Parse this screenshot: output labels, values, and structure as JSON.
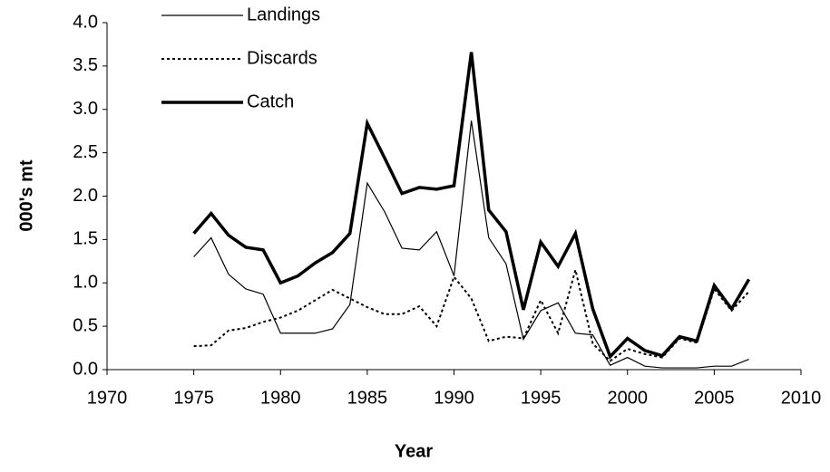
{
  "chart_data": {
    "type": "line",
    "x_label": "Year",
    "y_label": "000's mt",
    "x": [
      1975,
      1976,
      1977,
      1978,
      1979,
      1980,
      1981,
      1982,
      1983,
      1984,
      1985,
      1986,
      1987,
      1988,
      1989,
      1990,
      1991,
      1992,
      1993,
      1994,
      1995,
      1996,
      1997,
      1998,
      1999,
      2000,
      2001,
      2002,
      2003,
      2004,
      2005,
      2006,
      2007
    ],
    "series": [
      {
        "name": "Landings",
        "color": "#000000",
        "width": 1.2,
        "dash": "none",
        "values": [
          1.3,
          1.52,
          1.1,
          0.93,
          0.87,
          0.42,
          0.42,
          0.42,
          0.47,
          0.75,
          2.15,
          1.82,
          1.4,
          1.38,
          1.59,
          1.08,
          2.87,
          1.52,
          1.22,
          0.35,
          0.68,
          0.77,
          0.42,
          0.4,
          0.05,
          0.14,
          0.04,
          0.02,
          0.02,
          0.02,
          0.04,
          0.04,
          0.12
        ]
      },
      {
        "name": "Discards",
        "color": "#000000",
        "width": 2,
        "dash": "3 3",
        "values": [
          0.27,
          0.28,
          0.45,
          0.48,
          0.55,
          0.6,
          0.68,
          0.8,
          0.92,
          0.82,
          0.72,
          0.64,
          0.64,
          0.73,
          0.5,
          1.07,
          0.82,
          0.33,
          0.38,
          0.36,
          0.8,
          0.42,
          1.15,
          0.3,
          0.1,
          0.24,
          0.18,
          0.14,
          0.36,
          0.31,
          0.93,
          0.68,
          0.9
        ]
      },
      {
        "name": "Catch",
        "color": "#000000",
        "width": 3.5,
        "dash": "none",
        "values": [
          1.57,
          1.8,
          1.55,
          1.41,
          1.38,
          1.0,
          1.08,
          1.23,
          1.35,
          1.57,
          2.84,
          2.44,
          2.03,
          2.1,
          2.08,
          2.12,
          3.66,
          1.84,
          1.59,
          0.69,
          1.47,
          1.19,
          1.57,
          0.7,
          0.15,
          0.36,
          0.22,
          0.16,
          0.38,
          0.33,
          0.97,
          0.7,
          1.04
        ]
      }
    ],
    "xlim": [
      1970,
      2010
    ],
    "xticks": [
      1970,
      1975,
      1980,
      1985,
      1990,
      1995,
      2000,
      2005,
      2010
    ],
    "ylim": [
      0,
      4
    ],
    "yticks": [
      {
        "value": 0,
        "label": "0.0"
      },
      {
        "value": 0.5,
        "label": "0.5"
      },
      {
        "value": 1,
        "label": "1.0"
      },
      {
        "value": 1.5,
        "label": "1.5"
      },
      {
        "value": 2,
        "label": "2.0"
      },
      {
        "value": 2.5,
        "label": "2.5"
      },
      {
        "value": 3,
        "label": "3.0"
      },
      {
        "value": 3.5,
        "label": "3.5"
      },
      {
        "value": 4,
        "label": "4.0"
      }
    ],
    "legend": "top-left"
  }
}
